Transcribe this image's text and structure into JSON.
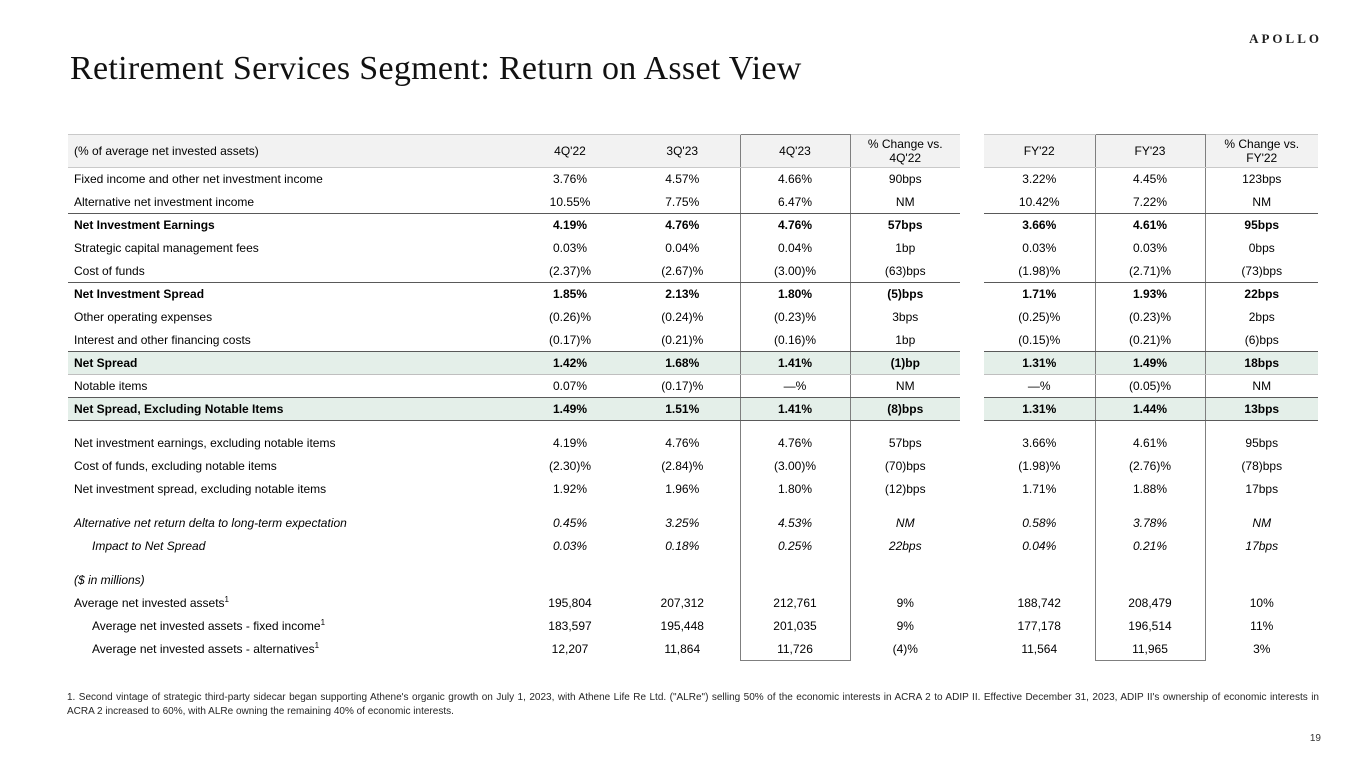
{
  "logo": "APOLLO",
  "title": "Retirement Services Segment: Return on Asset View",
  "page_number": "19",
  "footnote": "1. Second vintage of strategic third-party sidecar began supporting Athene's organic growth on July 1, 2023, with Athene Life Re Ltd. (\"ALRe\") selling 50% of the economic interests in ACRA 2 to ADIP II. Effective December 31, 2023, ADIP II's ownership of economic interests in ACRA 2 increased to 60%, with ALRe owning the remaining 40% of economic interests.",
  "colors": {
    "highlight": "#e4efe9",
    "header-bg": "#f2f2f2",
    "rule-dark": "#595959",
    "rule-light": "#bfbfbf",
    "box-border": "#7f7f7f"
  },
  "table": {
    "header": [
      "(% of average net invested assets)",
      "4Q'22",
      "3Q'23",
      "4Q'23",
      "% Change vs. 4Q'22",
      "FY'22",
      "FY'23",
      "% Change vs. FY'22"
    ],
    "rows": [
      {
        "label": "Fixed income and other net investment income",
        "values": [
          "3.76%",
          "4.57%",
          "4.66%",
          "90bps",
          "3.22%",
          "4.45%",
          "123bps"
        ],
        "style": "normal"
      },
      {
        "label": "Alternative net investment income",
        "values": [
          "10.55%",
          "7.75%",
          "6.47%",
          "NM",
          "10.42%",
          "7.22%",
          "NM"
        ],
        "style": "normal",
        "rule": "dark"
      },
      {
        "label": "Net Investment Earnings",
        "values": [
          "4.19%",
          "4.76%",
          "4.76%",
          "57bps",
          "3.66%",
          "4.61%",
          "95bps"
        ],
        "style": "bold"
      },
      {
        "label": "Strategic capital management fees",
        "values": [
          "0.03%",
          "0.04%",
          "0.04%",
          "1bp",
          "0.03%",
          "0.03%",
          "0bps"
        ],
        "style": "normal"
      },
      {
        "label": "Cost of funds",
        "values": [
          "(2.37)%",
          "(2.67)%",
          "(3.00)%",
          "(63)bps",
          "(1.98)%",
          "(2.71)%",
          "(73)bps"
        ],
        "style": "normal",
        "rule": "dark"
      },
      {
        "label": "Net Investment Spread",
        "values": [
          "1.85%",
          "2.13%",
          "1.80%",
          "(5)bps",
          "1.71%",
          "1.93%",
          "22bps"
        ],
        "style": "bold"
      },
      {
        "label": "Other operating expenses",
        "values": [
          "(0.26)%",
          "(0.24)%",
          "(0.23)%",
          "3bps",
          "(0.25)%",
          "(0.23)%",
          "2bps"
        ],
        "style": "normal"
      },
      {
        "label": "Interest and other financing costs",
        "values": [
          "(0.17)%",
          "(0.21)%",
          "(0.16)%",
          "1bp",
          "(0.15)%",
          "(0.21)%",
          "(6)bps"
        ],
        "style": "normal",
        "rule": "dark"
      },
      {
        "label": "Net Spread",
        "values": [
          "1.42%",
          "1.68%",
          "1.41%",
          "(1)bp",
          "1.31%",
          "1.49%",
          "18bps"
        ],
        "style": "bold",
        "highlight": true,
        "rule": "light"
      },
      {
        "label": "Notable items",
        "values": [
          "0.07%",
          "(0.17)%",
          "—%",
          "NM",
          "—%",
          "(0.05)%",
          "NM"
        ],
        "style": "normal",
        "rule": "dark"
      },
      {
        "label": "Net Spread, Excluding Notable Items",
        "values": [
          "1.49%",
          "1.51%",
          "1.41%",
          "(8)bps",
          "1.31%",
          "1.44%",
          "13bps"
        ],
        "style": "bold",
        "highlight": true,
        "rule": "dark"
      },
      {
        "style": "spacer"
      },
      {
        "label": "Net investment earnings, excluding notable items",
        "values": [
          "4.19%",
          "4.76%",
          "4.76%",
          "57bps",
          "3.66%",
          "4.61%",
          "95bps"
        ],
        "style": "normal"
      },
      {
        "label": "Cost of funds, excluding notable items",
        "values": [
          "(2.30)%",
          "(2.84)%",
          "(3.00)%",
          "(70)bps",
          "(1.98)%",
          "(2.76)%",
          "(78)bps"
        ],
        "style": "normal"
      },
      {
        "label": "Net investment spread, excluding notable items",
        "values": [
          "1.92%",
          "1.96%",
          "1.80%",
          "(12)bps",
          "1.71%",
          "1.88%",
          "17bps"
        ],
        "style": "normal"
      },
      {
        "style": "spacer"
      },
      {
        "label": "Alternative net return delta to long-term expectation",
        "values": [
          "0.45%",
          "3.25%",
          "4.53%",
          "NM",
          "0.58%",
          "3.78%",
          "NM"
        ],
        "style": "italic"
      },
      {
        "label": "Impact to Net Spread",
        "values": [
          "0.03%",
          "0.18%",
          "0.25%",
          "22bps",
          "0.04%",
          "0.21%",
          "17bps"
        ],
        "style": "italic",
        "indent": true
      },
      {
        "style": "spacer"
      },
      {
        "label": "($ in millions)",
        "values": [
          "",
          "",
          "",
          "",
          "",
          "",
          ""
        ],
        "style": "italic-label"
      },
      {
        "label": "Average net invested assets",
        "sup": "1",
        "values": [
          "195,804",
          "207,312",
          "212,761",
          "9%",
          "188,742",
          "208,479",
          "10%"
        ],
        "style": "normal"
      },
      {
        "label": "Average net invested assets - fixed income",
        "sup": "1",
        "values": [
          "183,597",
          "195,448",
          "201,035",
          "9%",
          "177,178",
          "196,514",
          "11%"
        ],
        "style": "normal",
        "indent": true
      },
      {
        "label": "Average net invested assets - alternatives",
        "sup": "1",
        "values": [
          "12,207",
          "11,864",
          "11,726",
          "(4)%",
          "11,564",
          "11,965",
          "3%"
        ],
        "style": "normal",
        "indent": true
      }
    ]
  }
}
